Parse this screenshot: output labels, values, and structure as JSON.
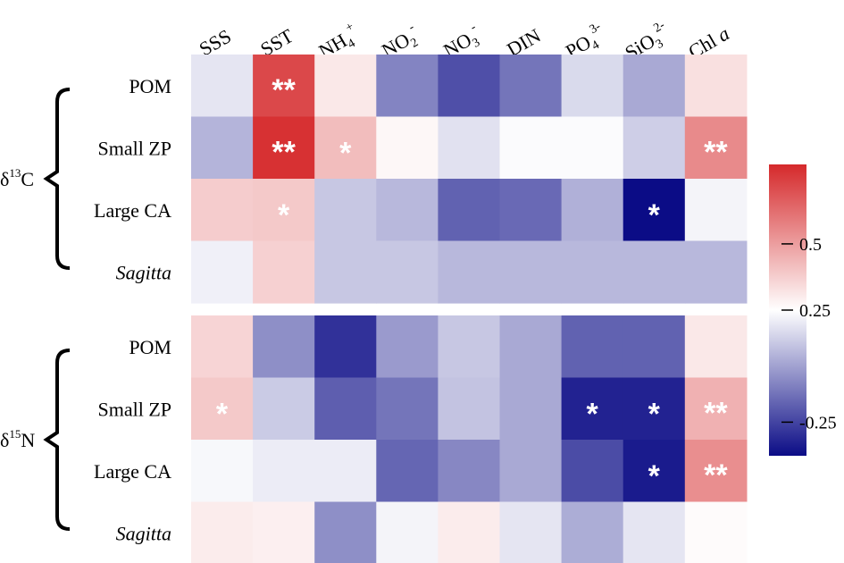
{
  "chart_data": {
    "type": "heatmap",
    "columns": [
      {
        "main": "SSS",
        "sub": "",
        "sup": ""
      },
      {
        "main": "SST",
        "sub": "",
        "sup": ""
      },
      {
        "main": "NH",
        "sub": "4",
        "sup": "+"
      },
      {
        "main": "NO",
        "sub": "2",
        "sup": "-"
      },
      {
        "main": "NO",
        "sub": "3",
        "sup": "-"
      },
      {
        "main": "DIN",
        "sub": "",
        "sup": ""
      },
      {
        "main": "PO",
        "sub": "4",
        "sup": "3-"
      },
      {
        "main": "SiO",
        "sub": "3",
        "sup": "2-"
      },
      {
        "main": "Chl ",
        "sub": "",
        "sup": "",
        "italic": "a"
      }
    ],
    "rows": [
      "POM",
      "Small ZP",
      "Large CA",
      "Sagitta"
    ],
    "italic_rows": [
      "Sagitta"
    ],
    "groups": [
      {
        "delta": "δ",
        "sup": "13",
        "element": "C",
        "values": [
          [
            0.18,
            0.72,
            0.31,
            -0.08,
            -0.22,
            -0.12,
            0.15,
            0.02,
            0.33
          ],
          [
            0.05,
            0.78,
            0.42,
            0.27,
            0.17,
            0.24,
            0.24,
            0.12,
            0.55
          ],
          [
            0.38,
            0.39,
            0.1,
            0.06,
            -0.17,
            -0.15,
            0.04,
            -0.4,
            0.22
          ],
          [
            0.21,
            0.37,
            0.1,
            0.1,
            0.06,
            0.06,
            0.06,
            0.06,
            0.06
          ]
        ],
        "stars": [
          [
            "",
            "**",
            "",
            "",
            "",
            "",
            "",
            "",
            ""
          ],
          [
            "",
            "**",
            "*",
            "",
            "",
            "",
            "",
            "",
            "**"
          ],
          [
            "",
            "*",
            "",
            "",
            "",
            "",
            "",
            "*",
            ""
          ],
          [
            "",
            "",
            "",
            "",
            "",
            "",
            "",
            "",
            ""
          ]
        ]
      },
      {
        "delta": "δ",
        "sup": "15",
        "element": "N",
        "values": [
          [
            0.36,
            -0.05,
            -0.3,
            -0.02,
            0.1,
            0.02,
            -0.17,
            -0.17,
            0.31
          ],
          [
            0.39,
            0.11,
            -0.18,
            -0.12,
            0.09,
            0.02,
            -0.34,
            -0.34,
            0.45
          ],
          [
            0.23,
            0.2,
            0.2,
            -0.16,
            -0.07,
            0.02,
            -0.23,
            -0.36,
            0.54
          ],
          [
            0.3,
            0.29,
            -0.05,
            0.22,
            0.3,
            0.18,
            0.03,
            0.18,
            0.26
          ]
        ],
        "stars": [
          [
            "",
            "",
            "",
            "",
            "",
            "",
            "",
            "",
            ""
          ],
          [
            "*",
            "",
            "",
            "",
            "",
            "",
            "*",
            "*",
            "**"
          ],
          [
            "",
            "",
            "",
            "",
            "",
            "",
            "",
            "*",
            "**"
          ],
          [
            "",
            "",
            "",
            "",
            "",
            "",
            "",
            "",
            ""
          ]
        ]
      }
    ],
    "colorbar": {
      "min": -0.4,
      "max": 0.8,
      "center": 0.25,
      "ticks": [
        0.5,
        0.25,
        -0.25
      ],
      "tick_labels": [
        "0.5",
        "0.25",
        "-0.25"
      ],
      "colors": {
        "low": "#0b0c86",
        "mid": "#ffffff",
        "high": "#d5292b"
      }
    }
  }
}
